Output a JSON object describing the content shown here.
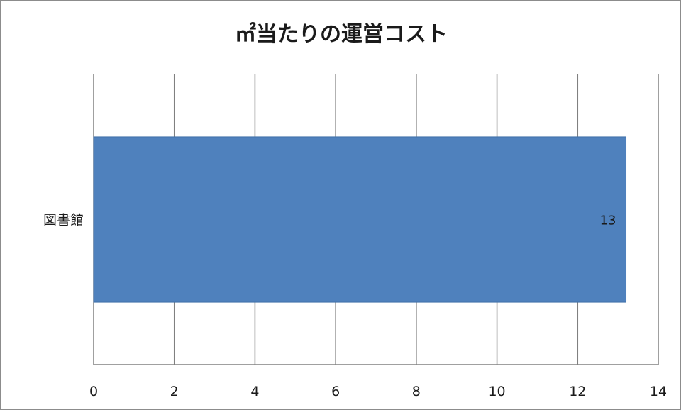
{
  "chart_data": {
    "type": "bar",
    "orientation": "horizontal",
    "title": "㎡当たりの運営コスト",
    "xlabel": "",
    "ylabel": "",
    "categories": [
      "図書館"
    ],
    "series": [
      {
        "values": [
          13.2
        ]
      }
    ],
    "data_labels": [
      "13"
    ],
    "xlim": [
      0,
      14
    ],
    "x_ticks": [
      0,
      2,
      4,
      6,
      8,
      10,
      12,
      14
    ],
    "grid": true,
    "legend": "none",
    "bar_color": "#4f81bd",
    "gridline_color": "#808080"
  }
}
